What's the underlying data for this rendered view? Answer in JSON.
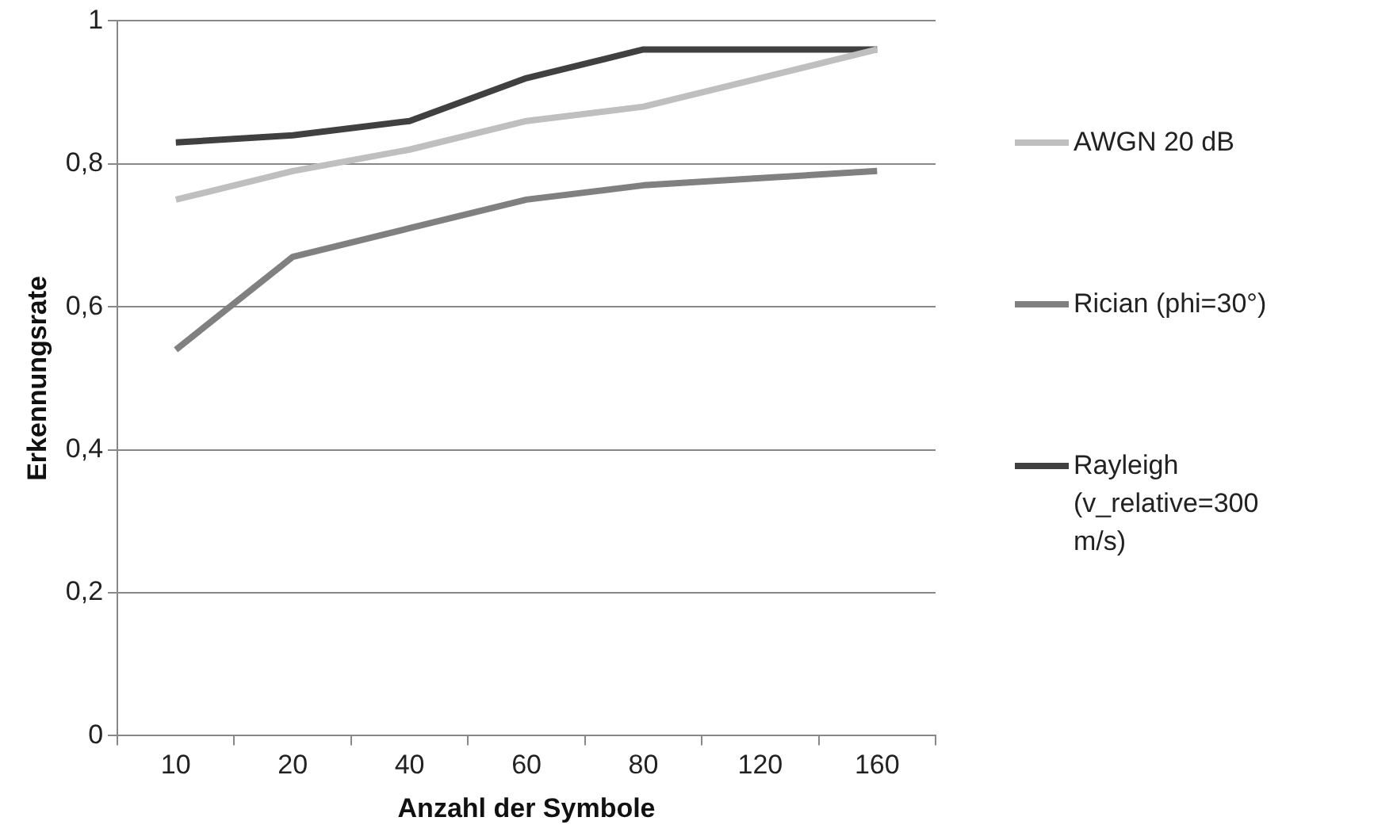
{
  "chart_data": {
    "type": "line",
    "xlabel": "Anzahl der Symbole",
    "ylabel": "Erkennungsrate",
    "categories": [
      "10",
      "20",
      "40",
      "60",
      "80",
      "120",
      "160"
    ],
    "series": [
      {
        "name": "AWGN 20 dB",
        "color": "#bfbfbf",
        "values": [
          0.75,
          0.79,
          0.82,
          0.86,
          0.88,
          0.92,
          0.96
        ]
      },
      {
        "name": "Rician (phi=30°)",
        "color": "#808080",
        "values": [
          0.54,
          0.67,
          0.71,
          0.75,
          0.77,
          0.78,
          0.79
        ]
      },
      {
        "name": "Rayleigh (v_relative=300 m/s)",
        "color": "#404040",
        "values": [
          0.83,
          0.84,
          0.86,
          0.92,
          0.96,
          0.96,
          0.96
        ]
      }
    ],
    "ylim": [
      0,
      1
    ],
    "yticks": [
      0,
      {
        "value": 0.2,
        "label": "0,2"
      },
      {
        "value": 0.4,
        "label": "0,4"
      },
      {
        "value": 0.6,
        "label": "0,6"
      },
      {
        "value": 0.8,
        "label": "0,8"
      },
      1
    ],
    "grid": "y",
    "legend": "right",
    "marker": "none",
    "line_style": "solid"
  }
}
